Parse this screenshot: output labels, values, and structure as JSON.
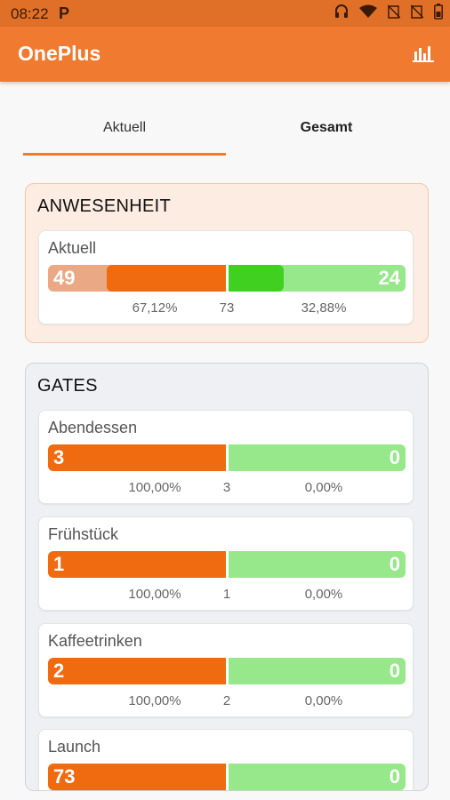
{
  "status_bar": {
    "time": "08:22",
    "p": "P"
  },
  "app_bar": {
    "title": "OnePlus",
    "action_icon": "bar-chart-icon"
  },
  "tabs": [
    {
      "label": "Aktuell",
      "selected": true
    },
    {
      "label": "Gesamt",
      "selected": false
    }
  ],
  "colors": {
    "accent": "#f07b30",
    "present": "#f06a10",
    "absent": "#96e88a",
    "absent_strong": "#40d020"
  },
  "attendance": {
    "heading": "ANWESENHEIT",
    "card": {
      "label": "Aktuell",
      "left_value": "49",
      "right_value": "24",
      "left_pct": "67,12%",
      "total": "73",
      "right_pct": "32,88%",
      "left_fill": 0.67,
      "right_fill": 0.33
    }
  },
  "gates": {
    "heading": "GATES",
    "items": [
      {
        "label": "Abendessen",
        "left_value": "3",
        "right_value": "0",
        "left_pct": "100,00%",
        "total": "3",
        "right_pct": "0,00%"
      },
      {
        "label": "Frühstück",
        "left_value": "1",
        "right_value": "0",
        "left_pct": "100,00%",
        "total": "1",
        "right_pct": "0,00%"
      },
      {
        "label": "Kaffeetrinken",
        "left_value": "2",
        "right_value": "0",
        "left_pct": "100,00%",
        "total": "2",
        "right_pct": "0,00%"
      },
      {
        "label": "Launch",
        "left_value": "73",
        "right_value": "0",
        "left_pct": "",
        "total": "",
        "right_pct": ""
      }
    ]
  }
}
